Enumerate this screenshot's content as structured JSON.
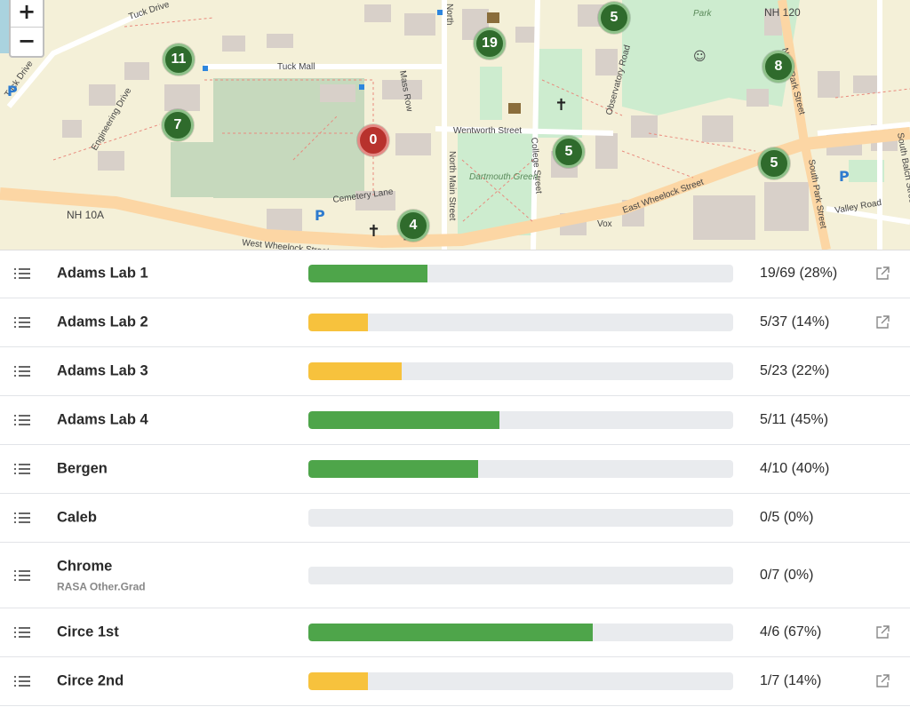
{
  "map": {
    "zoom_in_label": "+",
    "zoom_out_label": "−",
    "street_labels": [
      "Tuck Drive",
      "Tuck Mall",
      "Mass Row",
      "North Main Street",
      "College Street",
      "Observatory Road",
      "North Park Street",
      "NH 120",
      "Engineering Drive",
      "Wentworth Street",
      "Cemetery Lane",
      "NH 10A",
      "West Wheelock Street",
      "East Wheelock Street",
      "South Park Street",
      "Valley Road",
      "Dartmouth Green",
      "Park",
      "South Balch Street",
      "Vox",
      "North",
      "Mai",
      "Tuck Drive"
    ],
    "markers": [
      {
        "label": "11",
        "status": "ok"
      },
      {
        "label": "7",
        "status": "ok"
      },
      {
        "label": "19",
        "status": "ok"
      },
      {
        "label": "5",
        "status": "ok"
      },
      {
        "label": "8",
        "status": "ok"
      },
      {
        "label": "0",
        "status": "empty"
      },
      {
        "label": "5",
        "status": "ok"
      },
      {
        "label": "5",
        "status": "ok"
      },
      {
        "label": "4",
        "status": "ok"
      }
    ]
  },
  "colors": {
    "green": "#4ea54a",
    "yellow": "#f7c23d",
    "track": "#e9ebee"
  },
  "labs": [
    {
      "name": "Adams Lab 1",
      "sub": "",
      "count": "19/69 (28%)",
      "percent": 28,
      "color": "green",
      "link": true
    },
    {
      "name": "Adams Lab 2",
      "sub": "",
      "count": "5/37 (14%)",
      "percent": 14,
      "color": "yellow",
      "link": true
    },
    {
      "name": "Adams Lab 3",
      "sub": "",
      "count": "5/23 (22%)",
      "percent": 22,
      "color": "yellow",
      "link": false
    },
    {
      "name": "Adams Lab 4",
      "sub": "",
      "count": "5/11 (45%)",
      "percent": 45,
      "color": "green",
      "link": false
    },
    {
      "name": "Bergen",
      "sub": "",
      "count": "4/10 (40%)",
      "percent": 40,
      "color": "green",
      "link": false
    },
    {
      "name": "Caleb",
      "sub": "",
      "count": "0/5 (0%)",
      "percent": 0,
      "color": "green",
      "link": false
    },
    {
      "name": "Chrome",
      "sub": "RASA Other.Grad",
      "count": "0/7 (0%)",
      "percent": 0,
      "color": "green",
      "link": false
    },
    {
      "name": "Circe 1st",
      "sub": "",
      "count": "4/6 (67%)",
      "percent": 67,
      "color": "green",
      "link": true
    },
    {
      "name": "Circe 2nd",
      "sub": "",
      "count": "1/7 (14%)",
      "percent": 14,
      "color": "yellow",
      "link": true
    }
  ]
}
